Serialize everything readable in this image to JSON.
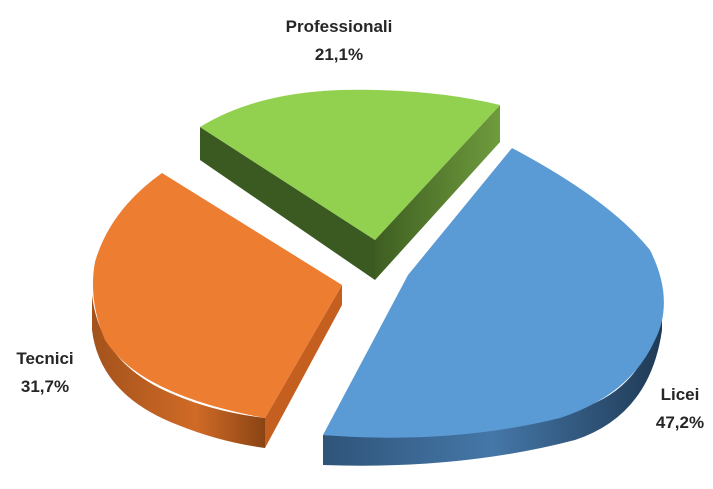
{
  "chart_data": {
    "type": "pie",
    "style": "3d-exploded",
    "title": "",
    "legend": "none",
    "slices": [
      {
        "label": "Licei",
        "value": 47.2,
        "value_label": "47,2%",
        "color": "#5b9bd5",
        "side_color": "#3a6590",
        "edge_color": "#2e4f70"
      },
      {
        "label": "Tecnici",
        "value": 31.7,
        "value_label": "31,7%",
        "color": "#ed7d31",
        "side_color": "#b55a1e",
        "edge_color": "#8f4616"
      },
      {
        "label": "Professionali",
        "value": 21.1,
        "value_label": "21,1%",
        "color": "#92d050",
        "side_color": "#5f8a33",
        "edge_color": "#3f5f22"
      }
    ]
  }
}
